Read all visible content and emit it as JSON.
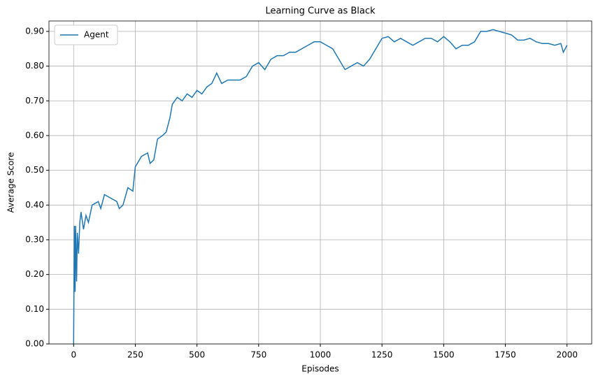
{
  "chart_data": {
    "type": "line",
    "title": "Learning Curve as Black",
    "x_label": "Episodes",
    "y_label": "Average Score",
    "x": [
      0,
      3,
      6,
      8,
      12,
      15,
      20,
      25,
      30,
      40,
      50,
      60,
      75,
      100,
      110,
      125,
      150,
      175,
      185,
      200,
      220,
      240,
      250,
      275,
      300,
      310,
      325,
      340,
      360,
      375,
      390,
      400,
      420,
      440,
      460,
      480,
      500,
      520,
      540,
      560,
      580,
      600,
      625,
      650,
      675,
      700,
      725,
      750,
      775,
      800,
      825,
      850,
      875,
      900,
      925,
      950,
      975,
      1000,
      1025,
      1050,
      1075,
      1100,
      1125,
      1150,
      1175,
      1200,
      1225,
      1250,
      1275,
      1300,
      1325,
      1350,
      1375,
      1400,
      1425,
      1450,
      1475,
      1500,
      1525,
      1550,
      1575,
      1600,
      1625,
      1650,
      1675,
      1700,
      1725,
      1750,
      1775,
      1800,
      1825,
      1850,
      1875,
      1900,
      1925,
      1950,
      1975,
      1985,
      2000
    ],
    "series": [
      {
        "name": "Agent",
        "color": "#1f77b4",
        "values": [
          0,
          0.34,
          0.15,
          0.34,
          0.18,
          0.32,
          0.26,
          0.35,
          0.38,
          0.33,
          0.37,
          0.35,
          0.4,
          0.41,
          0.39,
          0.43,
          0.42,
          0.41,
          0.39,
          0.4,
          0.45,
          0.44,
          0.51,
          0.54,
          0.55,
          0.52,
          0.53,
          0.59,
          0.6,
          0.61,
          0.65,
          0.69,
          0.71,
          0.7,
          0.72,
          0.71,
          0.73,
          0.72,
          0.74,
          0.75,
          0.78,
          0.75,
          0.76,
          0.76,
          0.76,
          0.77,
          0.8,
          0.81,
          0.79,
          0.82,
          0.83,
          0.83,
          0.84,
          0.84,
          0.85,
          0.86,
          0.87,
          0.87,
          0.86,
          0.85,
          0.82,
          0.79,
          0.8,
          0.81,
          0.8,
          0.82,
          0.85,
          0.88,
          0.885,
          0.87,
          0.88,
          0.87,
          0.86,
          0.87,
          0.88,
          0.88,
          0.87,
          0.885,
          0.87,
          0.85,
          0.86,
          0.86,
          0.87,
          0.9,
          0.9,
          0.905,
          0.9,
          0.895,
          0.89,
          0.875,
          0.875,
          0.88,
          0.87,
          0.865,
          0.865,
          0.86,
          0.865,
          0.84,
          0.86
        ]
      }
    ],
    "xlim": [
      -100,
      2100
    ],
    "ylim": [
      0,
      0.93
    ],
    "xticks": [
      0,
      250,
      500,
      750,
      1000,
      1250,
      1500,
      1750,
      2000
    ],
    "yticks": [
      {
        "value": 0,
        "label": "0.00"
      },
      {
        "value": 0.1,
        "label": "0.10"
      },
      {
        "value": 0.2,
        "label": "0.20"
      },
      {
        "value": 0.3,
        "label": "0.30"
      },
      {
        "value": 0.4,
        "label": "0.40"
      },
      {
        "value": 0.5,
        "label": "0.50"
      },
      {
        "value": 0.6,
        "label": "0.60"
      },
      {
        "value": 0.7,
        "label": "0.70"
      },
      {
        "value": 0.8,
        "label": "0.80"
      },
      {
        "value": 0.9,
        "label": "0.90"
      }
    ],
    "grid": true,
    "legend": "upper-left"
  }
}
